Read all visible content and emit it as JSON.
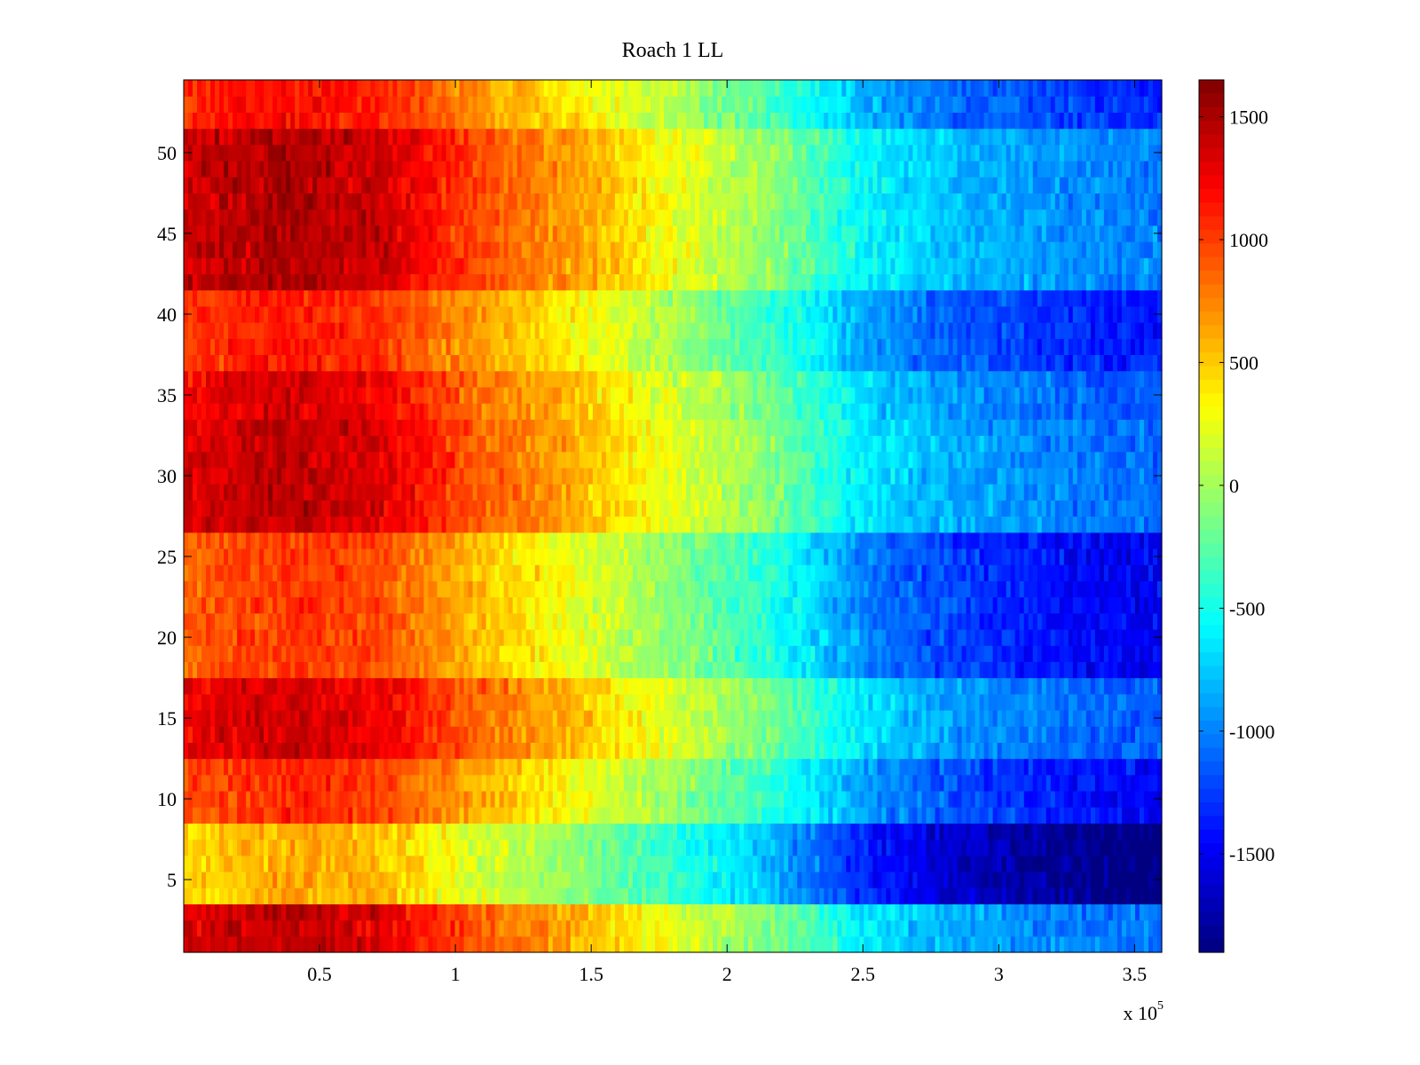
{
  "chart_data": {
    "type": "heatmap",
    "title": "Roach 1 LL",
    "xlabel": "",
    "ylabel": "",
    "x_exponent_label": "x 10",
    "x_exponent_power": "5",
    "xlim": [
      0,
      360000
    ],
    "ylim": [
      0.5,
      54.5
    ],
    "x_ticks": [
      0.5,
      1,
      1.5,
      2,
      2.5,
      3,
      3.5
    ],
    "x_tick_labels": [
      "0.5",
      "1",
      "1.5",
      "2",
      "2.5",
      "3",
      "3.5"
    ],
    "y_ticks": [
      5,
      10,
      15,
      20,
      25,
      30,
      35,
      40,
      45,
      50
    ],
    "y_tick_labels": [
      "5",
      "10",
      "15",
      "20",
      "25",
      "30",
      "35",
      "40",
      "45",
      "50"
    ],
    "colorbar": {
      "colormap": "jet",
      "clim": [
        -1900,
        1650
      ],
      "ticks": [
        1500,
        1000,
        500,
        0,
        -500,
        -1000,
        -1500
      ],
      "tick_labels": [
        "1500",
        "1000",
        "500",
        "0",
        "-500",
        "-1000",
        "-1500"
      ]
    },
    "rows": 54,
    "trend": {
      "x_profile": [
        0,
        36000,
        72000,
        108000,
        144000,
        180000,
        216000,
        252000,
        288000,
        324000,
        360000
      ],
      "value_profile": [
        1000,
        1150,
        1050,
        650,
        350,
        0,
        -350,
        -900,
        -1150,
        -1300,
        -1400
      ]
    },
    "row_groups": [
      {
        "rows": [
          1,
          3
        ],
        "offset": 250
      },
      {
        "rows": [
          4,
          8
        ],
        "offset": -450
      },
      {
        "rows": [
          9,
          12
        ],
        "offset": -50
      },
      {
        "rows": [
          13,
          17
        ],
        "offset": 200
      },
      {
        "rows": [
          18,
          26
        ],
        "offset": -100
      },
      {
        "rows": [
          27,
          33
        ],
        "offset": 250
      },
      {
        "rows": [
          34,
          36
        ],
        "offset": 180
      },
      {
        "rows": [
          37,
          41
        ],
        "offset": 0
      },
      {
        "rows": [
          42,
          51
        ],
        "offset": 300
      },
      {
        "rows": [
          52,
          54
        ],
        "offset": 50
      }
    ],
    "noise_amplitude": 260
  }
}
